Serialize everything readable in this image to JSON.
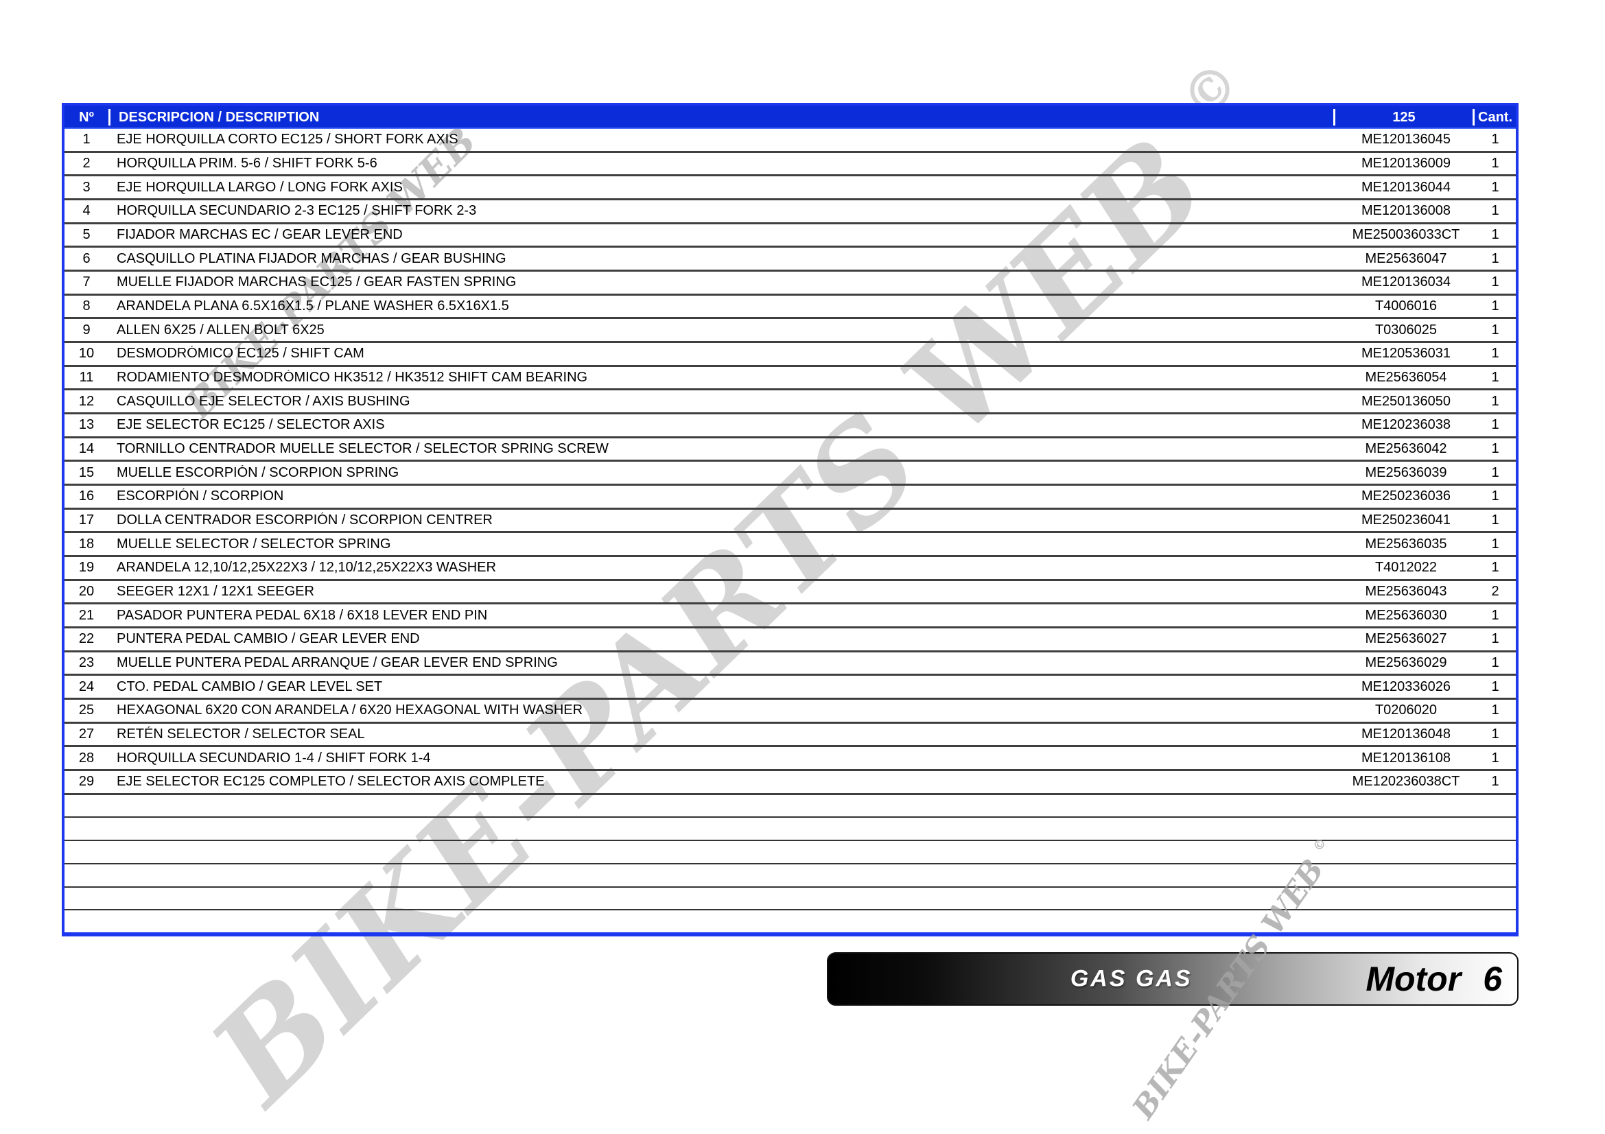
{
  "table": {
    "headers": {
      "num": "Nº",
      "description": "DESCRIPCION / DESCRIPTION",
      "part": "125",
      "qty": "Cant."
    },
    "rows": [
      {
        "num": "1",
        "description": "EJE HORQUILLA CORTO EC125 / SHORT FORK AXIS",
        "part": "ME120136045",
        "qty": "1"
      },
      {
        "num": "2",
        "description": "HORQUILLA PRIM. 5-6 / SHIFT FORK 5-6",
        "part": "ME120136009",
        "qty": "1"
      },
      {
        "num": "3",
        "description": "EJE HORQUILLA LARGO / LONG FORK AXIS",
        "part": "ME120136044",
        "qty": "1"
      },
      {
        "num": "4",
        "description": "HORQUILLA SECUNDARIO 2-3 EC125 / SHIFT FORK 2-3",
        "part": "ME120136008",
        "qty": "1"
      },
      {
        "num": "5",
        "description": "FIJADOR MARCHAS EC / GEAR LEVER END",
        "part": "ME250036033CT",
        "qty": "1"
      },
      {
        "num": "6",
        "description": "CASQUILLO PLATINA FIJADOR MARCHAS / GEAR BUSHING",
        "part": "ME25636047",
        "qty": "1"
      },
      {
        "num": "7",
        "description": "MUELLE FIJADOR MARCHAS EC125 / GEAR FASTEN SPRING",
        "part": "ME120136034",
        "qty": "1"
      },
      {
        "num": "8",
        "description": "ARANDELA PLANA 6.5X16X1.5 / PLANE WASHER 6.5X16X1.5",
        "part": "T4006016",
        "qty": "1"
      },
      {
        "num": "9",
        "description": "ALLEN 6X25 / ALLEN BOLT 6X25",
        "part": "T0306025",
        "qty": "1"
      },
      {
        "num": "10",
        "description": "DESMODRÓMICO EC125 / SHIFT CAM",
        "part": "ME120536031",
        "qty": "1"
      },
      {
        "num": "11",
        "description": "RODAMIENTO DESMODRÓMICO HK3512 / HK3512 SHIFT CAM BEARING",
        "part": "ME25636054",
        "qty": "1"
      },
      {
        "num": "12",
        "description": "CASQUILLO EJE SELECTOR / AXIS BUSHING",
        "part": "ME250136050",
        "qty": "1"
      },
      {
        "num": "13",
        "description": "EJE SELECTOR EC125 / SELECTOR AXIS",
        "part": "ME120236038",
        "qty": "1"
      },
      {
        "num": "14",
        "description": "TORNILLO CENTRADOR MUELLE SELECTOR / SELECTOR SPRING SCREW",
        "part": "ME25636042",
        "qty": "1"
      },
      {
        "num": "15",
        "description": "MUELLE ESCORPIÓN / SCORPION SPRING",
        "part": "ME25636039",
        "qty": "1"
      },
      {
        "num": "16",
        "description": "ESCORPIÓN / SCORPION",
        "part": "ME250236036",
        "qty": "1"
      },
      {
        "num": "17",
        "description": "DOLLA CENTRADOR ESCORPIÓN / SCORPION CENTRER",
        "part": "ME250236041",
        "qty": "1"
      },
      {
        "num": "18",
        "description": "MUELLE SELECTOR / SELECTOR SPRING",
        "part": "ME25636035",
        "qty": "1"
      },
      {
        "num": "19",
        "description": "ARANDELA 12,10/12,25X22X3 / 12,10/12,25X22X3 WASHER",
        "part": "T4012022",
        "qty": "1"
      },
      {
        "num": "20",
        "description": "SEEGER 12X1 / 12X1 SEEGER",
        "part": "ME25636043",
        "qty": "2"
      },
      {
        "num": "21",
        "description": "PASADOR PUNTERA PEDAL 6X18 / 6X18 LEVER END PIN",
        "part": "ME25636030",
        "qty": "1"
      },
      {
        "num": "22",
        "description": "PUNTERA PEDAL CAMBIO / GEAR LEVER END",
        "part": "ME25636027",
        "qty": "1"
      },
      {
        "num": "23",
        "description": "MUELLE PUNTERA PEDAL ARRANQUE / GEAR LEVER END SPRING",
        "part": "ME25636029",
        "qty": "1"
      },
      {
        "num": "24",
        "description": "CTO. PEDAL CAMBIO / GEAR LEVEL SET",
        "part": "ME120336026",
        "qty": "1"
      },
      {
        "num": "25",
        "description": "HEXAGONAL 6X20 CON ARANDELA / 6X20 HEXAGONAL WITH WASHER",
        "part": "T0206020",
        "qty": "1"
      },
      {
        "num": "27",
        "description": "RETÉN SELECTOR / SELECTOR SEAL",
        "part": "ME120136048",
        "qty": "1"
      },
      {
        "num": "28",
        "description": "HORQUILLA SECUNDARIO 1-4 / SHIFT FORK 1-4",
        "part": "ME120136108",
        "qty": "1"
      },
      {
        "num": "29",
        "description": "EJE SELECTOR EC125 COMPLETO / SELECTOR AXIS COMPLETE",
        "part": "ME120236038CT",
        "qty": "1"
      }
    ],
    "empty_row_count": 6
  },
  "footer": {
    "brand": "GAS GAS",
    "model_label": "Motor",
    "page_number": "6"
  },
  "watermark": {
    "text": "BIKE-PARTS WEB",
    "symbol": "©"
  },
  "colors": {
    "header_bg": "#0b2cd9",
    "table_border": "#1d37ef",
    "row_line": "#3f3f3f",
    "watermark_gray": "#d5d5d5"
  }
}
